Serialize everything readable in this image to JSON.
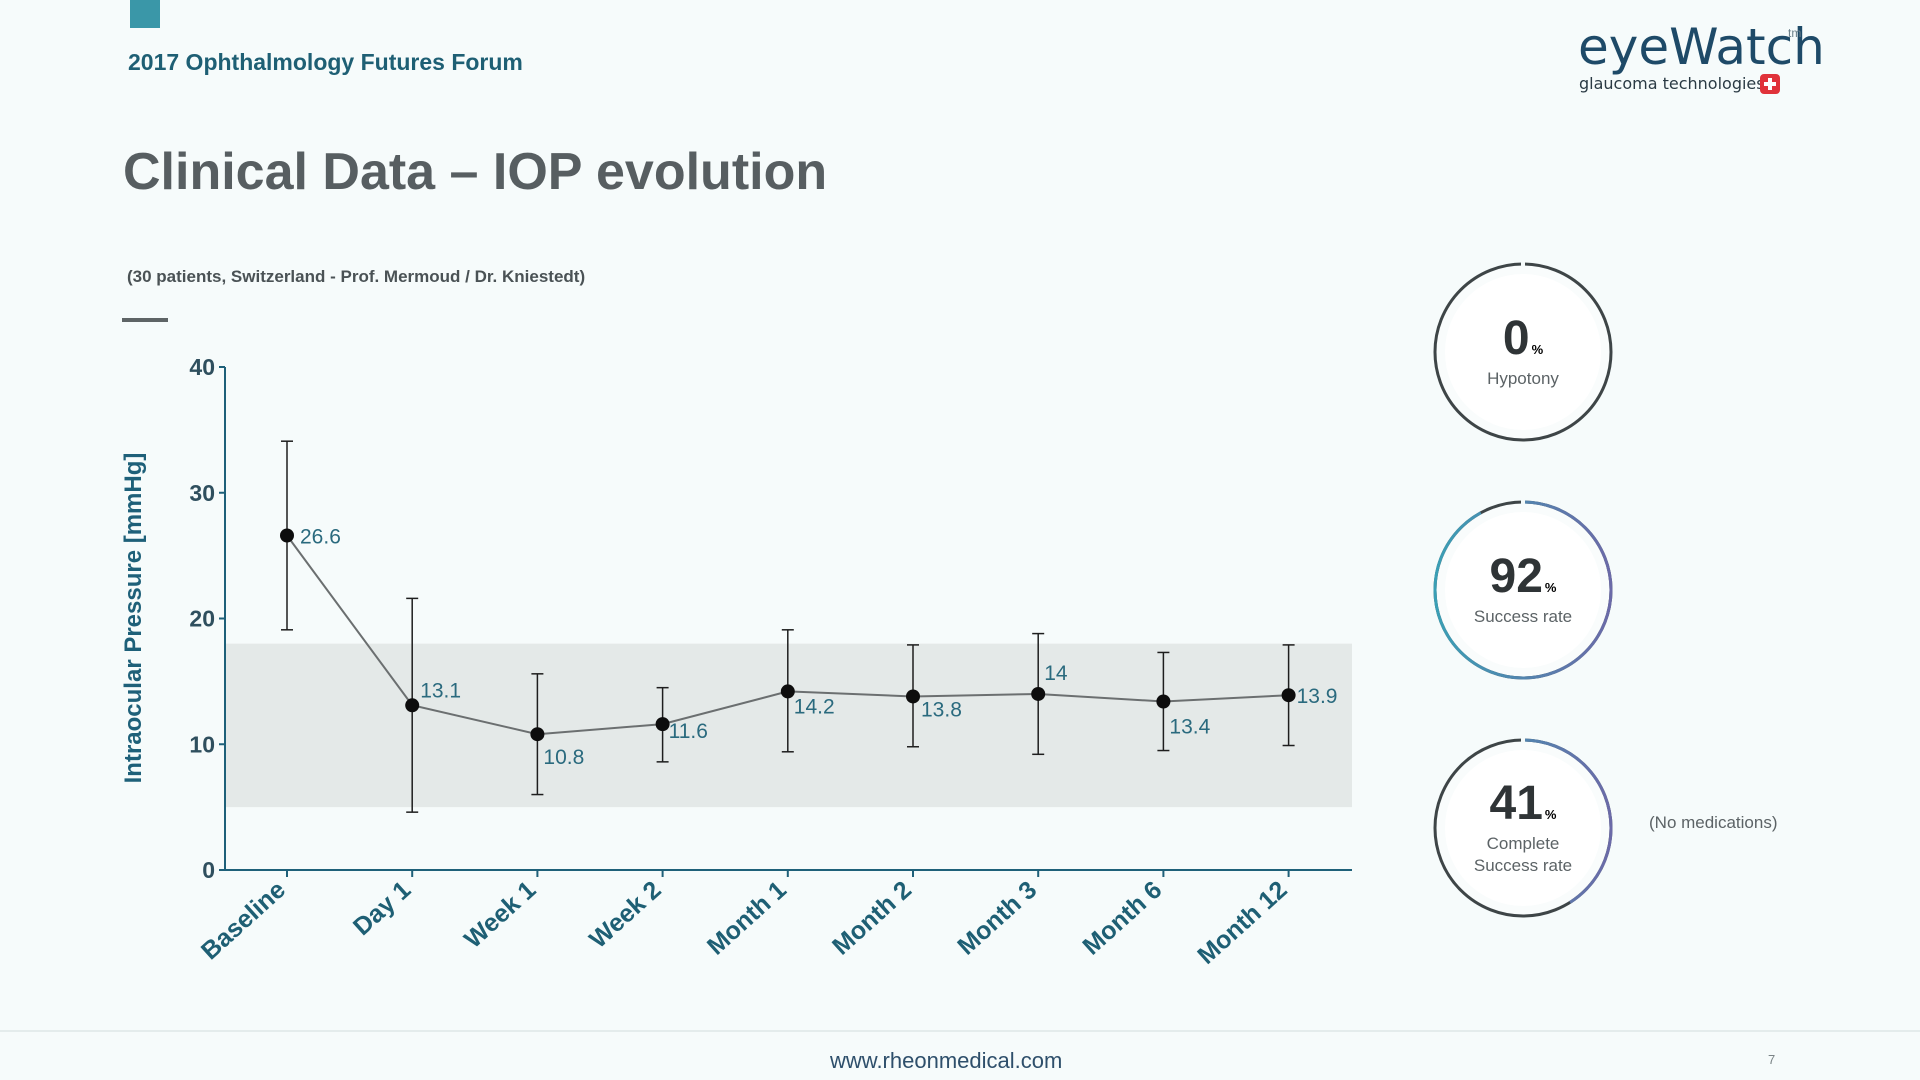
{
  "header": {
    "forum": "2017 Ophthalmology Futures Forum",
    "logo_word": "eyeWatch",
    "logo_tm": "tm",
    "logo_sub": "glaucoma technologies"
  },
  "title": "Clinical Data – IOP evolution",
  "subtitle": "(30 patients, Switzerland - Prof. Mermoud  / Dr. Kniestedt)",
  "chart_data": {
    "type": "line",
    "ylabel": "Intraocular Pressure [mmHg]",
    "xlabel": "",
    "ylim": [
      0,
      40
    ],
    "yticks": [
      "0",
      "10",
      "20",
      "30",
      "40"
    ],
    "categories": [
      "Baseline",
      "Day 1",
      "Week 1",
      "Week 2",
      "Month 1",
      "Month 2",
      "Month 3",
      "Month 6",
      "Month 12"
    ],
    "values": [
      26.6,
      13.1,
      10.8,
      11.6,
      14.2,
      13.8,
      14,
      13.4,
      13.9
    ],
    "data_labels": [
      "26.6",
      "13.1",
      "10.8",
      "11.6",
      "14.2",
      "13.8",
      "14",
      "13.4",
      "13.9"
    ],
    "error_low": [
      19.1,
      4.6,
      6.0,
      8.6,
      9.4,
      9.8,
      9.2,
      9.5,
      9.9
    ],
    "error_high": [
      34.1,
      21.6,
      15.6,
      14.5,
      19.1,
      17.9,
      18.8,
      17.3,
      17.9
    ],
    "target_band": [
      5,
      18
    ],
    "grid": false
  },
  "stats": [
    {
      "value": "0",
      "unit": "%",
      "label_lines": [
        "Hypotony"
      ],
      "fraction": 0.0
    },
    {
      "value": "92",
      "unit": "%",
      "label_lines": [
        "Success rate"
      ],
      "fraction": 0.92
    },
    {
      "value": "41",
      "unit": "%",
      "label_lines": [
        "Complete",
        "Success rate"
      ],
      "fraction": 0.41
    }
  ],
  "note": "(No medications)",
  "footer": {
    "url": "www.rheonmedical.com",
    "page": "7"
  },
  "colors": {
    "accent": "#3a97a8",
    "title": "#575e61",
    "axis": "#1e6079",
    "band": "#e4e9e8"
  }
}
